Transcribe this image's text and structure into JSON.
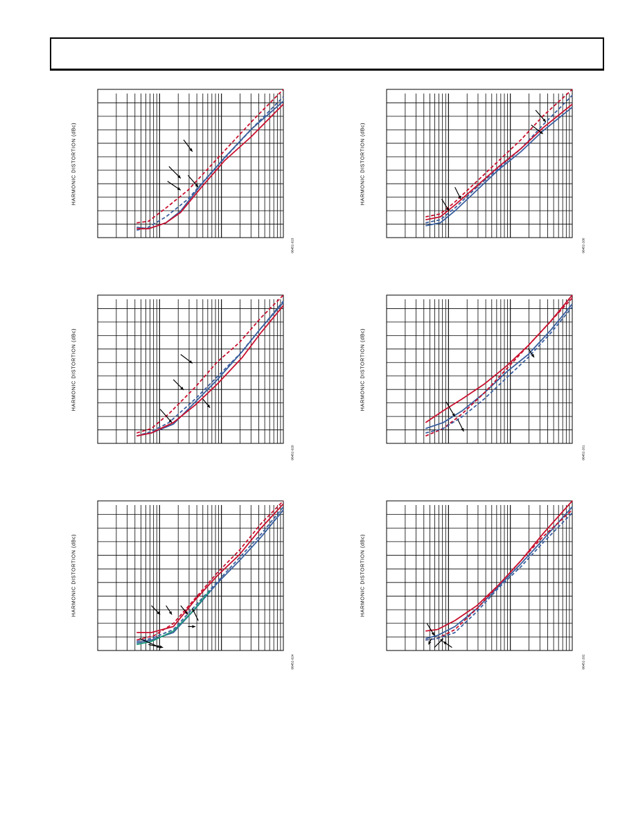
{
  "page": {
    "header_text": ""
  },
  "style": {
    "grid_color": "#000000",
    "series_red": "#c8102e",
    "series_blue": "#3a5f9e",
    "series_green": "#1f9a7a"
  },
  "charts": [
    {
      "id": "chart1",
      "ylabel": "HARMONIC DISTORTION (dBc)",
      "figure_id": "06452-023",
      "series": [
        {
          "color": "red",
          "dash": true,
          "pts": [
            [
              0,
              0.9
            ],
            [
              0.08,
              0.89
            ],
            [
              0.2,
              0.8
            ],
            [
              0.35,
              0.68
            ],
            [
              0.5,
              0.52
            ],
            [
              0.65,
              0.36
            ],
            [
              0.8,
              0.2
            ],
            [
              1,
              0.0
            ]
          ]
        },
        {
          "color": "blue",
          "dash": true,
          "pts": [
            [
              0,
              0.95
            ],
            [
              0.08,
              0.93
            ],
            [
              0.2,
              0.86
            ],
            [
              0.35,
              0.74
            ],
            [
              0.5,
              0.57
            ],
            [
              0.65,
              0.41
            ],
            [
              0.8,
              0.25
            ],
            [
              1,
              0.05
            ]
          ]
        },
        {
          "color": "blue",
          "dash": false,
          "pts": [
            [
              0,
              0.93
            ],
            [
              0.08,
              0.94
            ],
            [
              0.2,
              0.9
            ],
            [
              0.3,
              0.82
            ],
            [
              0.45,
              0.63
            ],
            [
              0.6,
              0.46
            ],
            [
              0.78,
              0.27
            ],
            [
              1,
              0.08
            ]
          ]
        },
        {
          "color": "red",
          "dash": false,
          "pts": [
            [
              0,
              0.94
            ],
            [
              0.08,
              0.94
            ],
            [
              0.2,
              0.9
            ],
            [
              0.3,
              0.83
            ],
            [
              0.45,
              0.65
            ],
            [
              0.6,
              0.48
            ],
            [
              0.78,
              0.32
            ],
            [
              1,
              0.1
            ]
          ]
        }
      ],
      "arrows": [
        [
          0.38,
          0.42,
          0.32,
          0.34
        ],
        [
          0.3,
          0.6,
          0.22,
          0.52
        ],
        [
          0.3,
          0.68,
          0.21,
          0.62
        ],
        [
          0.42,
          0.66,
          0.35,
          0.58
        ]
      ]
    },
    {
      "id": "chart2",
      "ylabel": "HARMONIC DISTORTION (dBc)",
      "figure_id": "06452-020",
      "series": [
        {
          "color": "red",
          "dash": true,
          "pts": [
            [
              0,
              0.93
            ],
            [
              0.1,
              0.9
            ],
            [
              0.22,
              0.8
            ],
            [
              0.4,
              0.62
            ],
            [
              0.55,
              0.45
            ],
            [
              0.7,
              0.32
            ],
            [
              0.85,
              0.15
            ],
            [
              1,
              0.0
            ]
          ]
        },
        {
          "color": "blue",
          "dash": true,
          "pts": [
            [
              0,
              0.95
            ],
            [
              0.1,
              0.92
            ],
            [
              0.22,
              0.86
            ],
            [
              0.4,
              0.7
            ],
            [
              0.55,
              0.55
            ],
            [
              0.7,
              0.4
            ],
            [
              0.85,
              0.22
            ],
            [
              1,
              0.04
            ]
          ]
        },
        {
          "color": "blue",
          "dash": false,
          "pts": [
            [
              0,
              0.95
            ],
            [
              0.1,
              0.93
            ],
            [
              0.25,
              0.87
            ],
            [
              0.4,
              0.72
            ],
            [
              0.55,
              0.57
            ],
            [
              0.72,
              0.38
            ],
            [
              0.85,
              0.22
            ],
            [
              1,
              0.05
            ]
          ]
        },
        {
          "color": "red",
          "dash": false,
          "pts": [
            [
              0,
              0.95
            ],
            [
              0.1,
              0.93
            ],
            [
              0.25,
              0.86
            ],
            [
              0.4,
              0.74
            ],
            [
              0.55,
              0.6
            ],
            [
              0.72,
              0.42
            ],
            [
              0.85,
              0.25
            ],
            [
              1,
              0.07
            ]
          ]
        }
      ],
      "arrows": [
        [
          0.38,
          0.46,
          0.3,
          0.4
        ],
        [
          0.32,
          0.64,
          0.25,
          0.57
        ],
        [
          0.24,
          0.86,
          0.16,
          0.77
        ],
        [
          0.5,
          0.76,
          0.45,
          0.7
        ]
      ]
    },
    {
      "id": "chart3",
      "ylabel": "HARMONIC DISTORTION (dBc)",
      "figure_id": "06452-024",
      "series": [
        {
          "color": "red",
          "dash": true,
          "pts": [
            [
              0,
              0.93
            ],
            [
              0.12,
              0.9
            ],
            [
              0.25,
              0.82
            ],
            [
              0.4,
              0.65
            ],
            [
              0.55,
              0.48
            ],
            [
              0.7,
              0.33
            ],
            [
              0.85,
              0.15
            ],
            [
              1,
              0.0
            ]
          ]
        },
        {
          "color": "red",
          "dash": false,
          "pts": [
            [
              0,
              0.88
            ],
            [
              0.1,
              0.88
            ],
            [
              0.25,
              0.84
            ],
            [
              0.4,
              0.66
            ],
            [
              0.55,
              0.5
            ],
            [
              0.7,
              0.36
            ],
            [
              0.85,
              0.18
            ],
            [
              1,
              0.02
            ]
          ]
        },
        {
          "color": "blue",
          "dash": true,
          "pts": [
            [
              0,
              0.94
            ],
            [
              0.1,
              0.92
            ],
            [
              0.25,
              0.86
            ],
            [
              0.4,
              0.7
            ],
            [
              0.55,
              0.54
            ],
            [
              0.7,
              0.38
            ],
            [
              0.85,
              0.22
            ],
            [
              1,
              0.04
            ]
          ]
        },
        {
          "color": "blue",
          "dash": false,
          "pts": [
            [
              0,
              0.95
            ],
            [
              0.1,
              0.93
            ],
            [
              0.25,
              0.88
            ],
            [
              0.4,
              0.72
            ],
            [
              0.55,
              0.55
            ],
            [
              0.7,
              0.4
            ],
            [
              0.85,
              0.24
            ],
            [
              1,
              0.06
            ]
          ]
        },
        {
          "color": "green",
          "dash": false,
          "pts": [
            [
              0,
              0.96
            ],
            [
              0.1,
              0.94
            ],
            [
              0.25,
              0.87
            ],
            [
              0.38,
              0.74
            ],
            [
              0.5,
              0.6
            ]
          ]
        }
      ],
      "arrows": [
        [
          0.16,
          0.76,
          0.1,
          0.7
        ],
        [
          0.24,
          0.76,
          0.2,
          0.7
        ],
        [
          0.35,
          0.76,
          0.3,
          0.7
        ],
        [
          0.38,
          0.72,
          0.42,
          0.8
        ],
        [
          0.16,
          0.98,
          0.02,
          0.92
        ],
        [
          0.18,
          0.98,
          0.08,
          0.96
        ],
        [
          0.4,
          0.84,
          0.35,
          0.84
        ]
      ]
    },
    {
      "id": "chart4",
      "ylabel": "HARMONIC DISTORTION (dBc)",
      "figure_id": "06452-200",
      "series": [
        {
          "color": "red",
          "dash": true,
          "pts": [
            [
              0,
              0.86
            ],
            [
              0.1,
              0.84
            ],
            [
              0.2,
              0.76
            ],
            [
              0.35,
              0.62
            ],
            [
              0.5,
              0.48
            ],
            [
              0.65,
              0.34
            ],
            [
              0.8,
              0.18
            ],
            [
              1,
              0.0
            ]
          ]
        },
        {
          "color": "blue",
          "dash": true,
          "pts": [
            [
              0,
              0.9
            ],
            [
              0.1,
              0.88
            ],
            [
              0.2,
              0.8
            ],
            [
              0.35,
              0.66
            ],
            [
              0.5,
              0.53
            ],
            [
              0.65,
              0.4
            ],
            [
              0.8,
              0.24
            ],
            [
              1,
              0.04
            ]
          ]
        },
        {
          "color": "red",
          "dash": false,
          "pts": [
            [
              0,
              0.88
            ],
            [
              0.1,
              0.86
            ],
            [
              0.2,
              0.78
            ],
            [
              0.35,
              0.65
            ],
            [
              0.5,
              0.52
            ],
            [
              0.65,
              0.4
            ],
            [
              0.8,
              0.26
            ],
            [
              1,
              0.1
            ]
          ]
        },
        {
          "color": "blue",
          "dash": false,
          "pts": [
            [
              0,
              0.92
            ],
            [
              0.1,
              0.9
            ],
            [
              0.2,
              0.82
            ],
            [
              0.35,
              0.68
            ],
            [
              0.5,
              0.54
            ],
            [
              0.65,
              0.42
            ],
            [
              0.8,
              0.28
            ],
            [
              1,
              0.12
            ]
          ]
        }
      ],
      "arrows": [
        [
          0.82,
          0.22,
          0.75,
          0.14
        ],
        [
          0.8,
          0.3,
          0.72,
          0.24
        ],
        [
          0.16,
          0.82,
          0.11,
          0.74
        ],
        [
          0.24,
          0.74,
          0.2,
          0.66
        ]
      ]
    },
    {
      "id": "chart5",
      "ylabel": "HARMONIC DISTORTION (dBc)",
      "figure_id": "06452-201",
      "series": [
        {
          "color": "red",
          "dash": false,
          "pts": [
            [
              0,
              0.86
            ],
            [
              0.12,
              0.78
            ],
            [
              0.25,
              0.7
            ],
            [
              0.4,
              0.6
            ],
            [
              0.55,
              0.48
            ],
            [
              0.7,
              0.34
            ],
            [
              0.85,
              0.18
            ],
            [
              1,
              0.0
            ]
          ]
        },
        {
          "color": "blue",
          "dash": false,
          "pts": [
            [
              0,
              0.9
            ],
            [
              0.12,
              0.86
            ],
            [
              0.25,
              0.78
            ],
            [
              0.4,
              0.66
            ],
            [
              0.55,
              0.52
            ],
            [
              0.7,
              0.4
            ],
            [
              0.85,
              0.24
            ],
            [
              1,
              0.06
            ]
          ]
        },
        {
          "color": "red",
          "dash": true,
          "pts": [
            [
              0,
              0.95
            ],
            [
              0.12,
              0.9
            ],
            [
              0.25,
              0.8
            ],
            [
              0.4,
              0.66
            ],
            [
              0.55,
              0.5
            ],
            [
              0.7,
              0.34
            ],
            [
              0.85,
              0.18
            ],
            [
              1,
              0.02
            ]
          ]
        },
        {
          "color": "blue",
          "dash": true,
          "pts": [
            [
              0,
              0.93
            ],
            [
              0.12,
              0.9
            ],
            [
              0.25,
              0.82
            ],
            [
              0.4,
              0.7
            ],
            [
              0.55,
              0.56
            ],
            [
              0.7,
              0.42
            ],
            [
              0.85,
              0.26
            ],
            [
              1,
              0.08
            ]
          ]
        }
      ],
      "arrows": [
        [
          0.74,
          0.42,
          0.7,
          0.36
        ],
        [
          0.2,
          0.82,
          0.14,
          0.72
        ],
        [
          0.26,
          0.92,
          0.22,
          0.84
        ]
      ]
    },
    {
      "id": "chart6",
      "ylabel": "HARMONIC DISTORTION (dBc)",
      "figure_id": "06452-202",
      "series": [
        {
          "color": "red",
          "dash": false,
          "pts": [
            [
              0,
              0.87
            ],
            [
              0.08,
              0.86
            ],
            [
              0.2,
              0.8
            ],
            [
              0.35,
              0.7
            ],
            [
              0.5,
              0.56
            ],
            [
              0.65,
              0.4
            ],
            [
              0.8,
              0.22
            ],
            [
              1,
              0.0
            ]
          ]
        },
        {
          "color": "blue",
          "dash": false,
          "pts": [
            [
              0,
              0.92
            ],
            [
              0.08,
              0.9
            ],
            [
              0.2,
              0.84
            ],
            [
              0.35,
              0.72
            ],
            [
              0.5,
              0.57
            ],
            [
              0.65,
              0.42
            ],
            [
              0.8,
              0.26
            ],
            [
              1,
              0.04
            ]
          ]
        },
        {
          "color": "red",
          "dash": true,
          "pts": [
            [
              0,
              0.93
            ],
            [
              0.08,
              0.92
            ],
            [
              0.2,
              0.86
            ],
            [
              0.35,
              0.72
            ],
            [
              0.5,
              0.56
            ],
            [
              0.65,
              0.4
            ],
            [
              0.8,
              0.24
            ],
            [
              1,
              0.06
            ]
          ]
        },
        {
          "color": "blue",
          "dash": true,
          "pts": [
            [
              0,
              0.93
            ],
            [
              0.08,
              0.92
            ],
            [
              0.2,
              0.88
            ],
            [
              0.35,
              0.74
            ],
            [
              0.5,
              0.58
            ],
            [
              0.65,
              0.44
            ],
            [
              0.8,
              0.28
            ],
            [
              1,
              0.08
            ]
          ]
        }
      ],
      "arrows": [
        [
          0.06,
          0.9,
          0.01,
          0.82
        ],
        [
          0.12,
          0.92,
          0.06,
          0.98
        ],
        [
          0.12,
          0.94,
          0.18,
          0.98
        ],
        [
          0.02,
          0.96,
          0.04,
          0.92
        ]
      ]
    }
  ]
}
